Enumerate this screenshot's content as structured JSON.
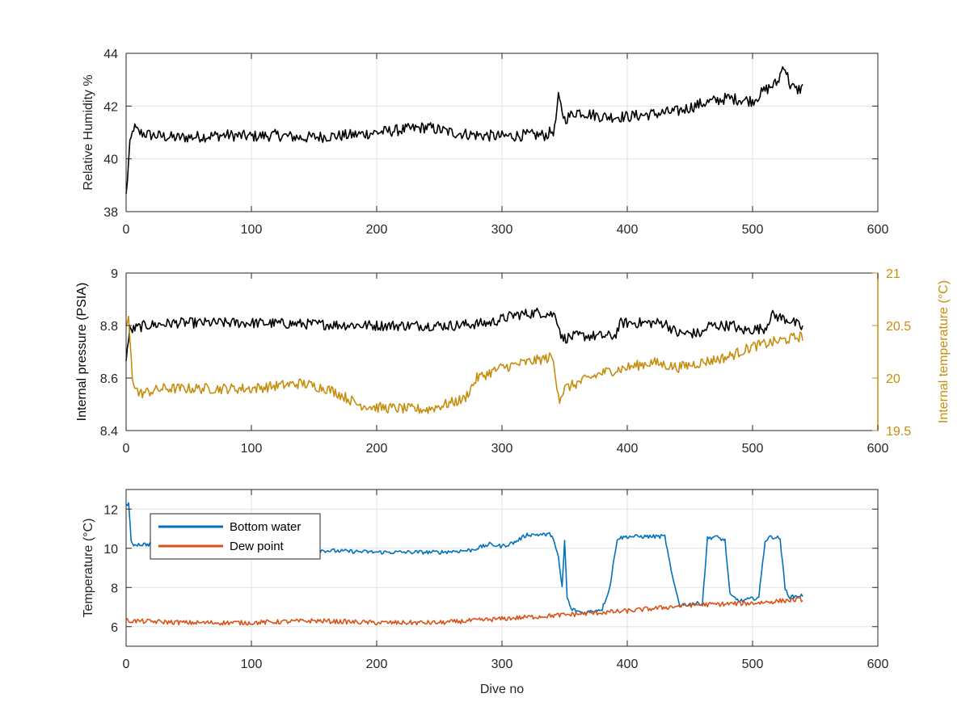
{
  "chart_data": [
    {
      "type": "line",
      "ylabel": "Relative Humidity %",
      "xlabel": "",
      "xlim": [
        0,
        600
      ],
      "ylim": [
        38,
        44
      ],
      "xticks": [
        "0",
        "100",
        "200",
        "300",
        "400",
        "500",
        "600"
      ],
      "yticks": [
        "38",
        "40",
        "42",
        "44"
      ],
      "grid": true,
      "series": [
        {
          "color": "#000000",
          "x": [
            0,
            3,
            6,
            10,
            20,
            40,
            60,
            80,
            100,
            120,
            140,
            160,
            180,
            200,
            220,
            240,
            260,
            280,
            300,
            320,
            335,
            342,
            345,
            350,
            360,
            380,
            400,
            420,
            440,
            460,
            480,
            500,
            510,
            520,
            525,
            530,
            535,
            540
          ],
          "y": [
            38.6,
            40.5,
            41.2,
            41.0,
            40.9,
            40.8,
            40.85,
            40.9,
            40.85,
            40.9,
            40.8,
            40.85,
            40.9,
            41.0,
            41.1,
            41.2,
            41.0,
            40.9,
            40.85,
            40.9,
            40.9,
            41.1,
            42.3,
            41.5,
            41.8,
            41.6,
            41.6,
            41.7,
            41.8,
            42.1,
            42.3,
            42.2,
            42.6,
            42.9,
            43.6,
            42.8,
            42.6,
            42.7
          ],
          "noise": 0.22
        }
      ]
    },
    {
      "type": "line",
      "ylabel": "Internal pressure (PSIA)",
      "y2label": "Internal temperature (°C)",
      "xlabel": "",
      "xlim": [
        0,
        600
      ],
      "ylim": [
        8.4,
        9
      ],
      "y2lim": [
        19.5,
        21
      ],
      "xticks": [
        "0",
        "100",
        "200",
        "300",
        "400",
        "500",
        "600"
      ],
      "yticks": [
        "8.4",
        "8.6",
        "8.8",
        "9"
      ],
      "y2ticks": [
        "19.5",
        "20",
        "20.5",
        "21"
      ],
      "grid": false,
      "series": [
        {
          "axis": "left",
          "color": "#000000",
          "x": [
            0,
            3,
            8,
            15,
            40,
            100,
            200,
            260,
            290,
            310,
            330,
            343,
            348,
            360,
            390,
            395,
            430,
            440,
            460,
            465,
            485,
            490,
            510,
            515,
            530,
            540
          ],
          "y": [
            8.68,
            8.78,
            8.79,
            8.8,
            8.81,
            8.81,
            8.8,
            8.8,
            8.81,
            8.84,
            8.85,
            8.84,
            8.75,
            8.76,
            8.76,
            8.81,
            8.81,
            8.77,
            8.77,
            8.8,
            8.8,
            8.78,
            8.79,
            8.84,
            8.82,
            8.79
          ],
          "noise": 0.02
        },
        {
          "axis": "right",
          "color": "#C68E0E",
          "x": [
            0,
            2,
            5,
            10,
            30,
            60,
            100,
            140,
            160,
            170,
            185,
            200,
            240,
            270,
            280,
            290,
            300,
            320,
            340,
            346,
            350,
            360,
            380,
            400,
            420,
            440,
            460,
            480,
            500,
            520,
            540
          ],
          "y": [
            20.5,
            20.55,
            20.0,
            19.85,
            19.9,
            19.9,
            19.9,
            19.95,
            19.9,
            19.85,
            19.75,
            19.72,
            19.7,
            19.8,
            20.0,
            20.05,
            20.1,
            20.15,
            20.2,
            19.8,
            19.9,
            19.95,
            20.05,
            20.1,
            20.15,
            20.1,
            20.15,
            20.2,
            20.3,
            20.35,
            20.4
          ],
          "noise": 0.05
        }
      ]
    },
    {
      "type": "line",
      "ylabel": "Temperature (°C)",
      "xlabel": "Dive no",
      "xlim": [
        0,
        600
      ],
      "ylim": [
        5,
        13
      ],
      "xticks": [
        "0",
        "100",
        "200",
        "300",
        "400",
        "500",
        "600"
      ],
      "yticks": [
        "6",
        "8",
        "10",
        "12"
      ],
      "ytick_values": [
        6,
        8,
        10,
        12
      ],
      "grid": true,
      "legend": {
        "position": "top-left",
        "entries": [
          "Bottom water",
          "Dew point"
        ]
      },
      "series": [
        {
          "name": "Bottom water",
          "color": "#0072BD",
          "x": [
            0,
            2,
            4,
            6,
            50,
            100,
            150,
            200,
            250,
            275,
            290,
            300,
            310,
            320,
            340,
            345,
            348,
            350,
            352,
            355,
            365,
            380,
            386,
            392,
            400,
            430,
            436,
            442,
            460,
            464,
            470,
            478,
            482,
            490,
            505,
            510,
            515,
            522,
            526,
            530,
            540
          ],
          "y": [
            12.2,
            12.3,
            10.3,
            10.2,
            10.2,
            10.1,
            9.9,
            9.8,
            9.8,
            9.9,
            10.2,
            10.1,
            10.3,
            10.7,
            10.7,
            9.5,
            8.0,
            10.4,
            7.5,
            6.9,
            6.7,
            6.9,
            8.0,
            10.5,
            10.6,
            10.6,
            8.5,
            7.1,
            7.2,
            10.5,
            10.6,
            10.4,
            7.6,
            7.3,
            7.5,
            10.4,
            10.6,
            10.5,
            7.9,
            7.5,
            7.6
          ],
          "noise": 0.1
        },
        {
          "name": "Dew point",
          "color": "#D95319",
          "x": [
            0,
            50,
            100,
            150,
            200,
            250,
            300,
            350,
            400,
            450,
            500,
            540
          ],
          "y": [
            6.3,
            6.2,
            6.2,
            6.3,
            6.2,
            6.2,
            6.4,
            6.6,
            6.8,
            7.1,
            7.2,
            7.4
          ],
          "noise": 0.12
        }
      ]
    }
  ]
}
